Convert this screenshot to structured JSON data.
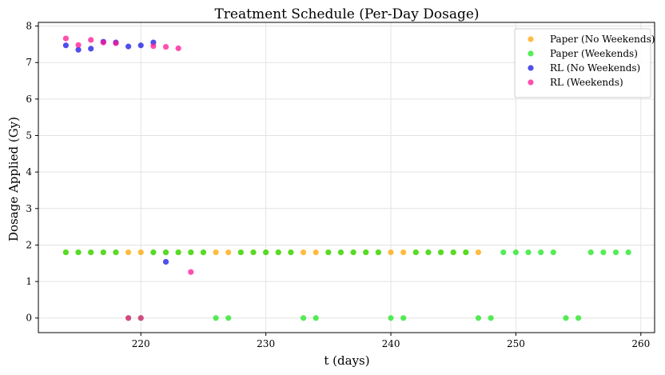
{
  "chart_data": {
    "type": "scatter",
    "title": "Treatment Schedule (Per-Day Dosage)",
    "xlabel": "t (days)",
    "ylabel": "Dosage Applied (Gy)",
    "xlim": [
      211.8,
      261.1
    ],
    "ylim": [
      -0.4,
      8.1
    ],
    "xticks": [
      220,
      230,
      240,
      250,
      260
    ],
    "yticks": [
      0,
      1,
      2,
      3,
      4,
      5,
      6,
      7,
      8
    ],
    "grid": true,
    "legend_position": "top-right",
    "series": [
      {
        "name": "Paper (No Weekends)",
        "color": "#ffa500",
        "x": [
          214,
          215,
          216,
          217,
          218,
          219,
          220,
          221,
          222,
          223,
          224,
          225,
          226,
          227,
          228,
          229,
          230,
          231,
          232,
          233,
          234,
          235,
          236,
          237,
          238,
          239,
          240,
          241,
          242,
          243,
          244,
          245,
          246,
          247
        ],
        "y": [
          1.8,
          1.8,
          1.8,
          1.8,
          1.8,
          1.8,
          1.8,
          1.8,
          1.8,
          1.8,
          1.8,
          1.8,
          1.8,
          1.8,
          1.8,
          1.8,
          1.8,
          1.8,
          1.8,
          1.8,
          1.8,
          1.8,
          1.8,
          1.8,
          1.8,
          1.8,
          1.8,
          1.8,
          1.8,
          1.8,
          1.8,
          1.8,
          1.8,
          1.8
        ]
      },
      {
        "name": "Paper (Weekends)",
        "color": "#1ee61e",
        "x": [
          214,
          215,
          216,
          217,
          218,
          219,
          220,
          221,
          222,
          223,
          224,
          225,
          226,
          227,
          228,
          229,
          230,
          231,
          232,
          233,
          234,
          235,
          236,
          237,
          238,
          239,
          240,
          241,
          242,
          243,
          244,
          245,
          246,
          247,
          248,
          249,
          250,
          251,
          252,
          253,
          254,
          255,
          256,
          257,
          258,
          259
        ],
        "y": [
          1.8,
          1.8,
          1.8,
          1.8,
          1.8,
          0,
          0,
          1.8,
          1.8,
          1.8,
          1.8,
          1.8,
          0,
          0,
          1.8,
          1.8,
          1.8,
          1.8,
          1.8,
          0,
          0,
          1.8,
          1.8,
          1.8,
          1.8,
          1.8,
          0,
          0,
          1.8,
          1.8,
          1.8,
          1.8,
          1.8,
          0,
          0,
          1.8,
          1.8,
          1.8,
          1.8,
          1.8,
          0,
          0,
          1.8,
          1.8,
          1.8,
          1.8
        ]
      },
      {
        "name": "RL (No Weekends)",
        "color": "#1414e6",
        "x": [
          214,
          215,
          216,
          217,
          218,
          219,
          220,
          221,
          222
        ],
        "y": [
          7.47,
          7.35,
          7.38,
          7.57,
          7.55,
          7.44,
          7.47,
          7.55,
          1.54
        ]
      },
      {
        "name": "RL (Weekends)",
        "color": "#ff1493",
        "x": [
          214,
          215,
          216,
          217,
          218,
          219,
          220,
          221,
          222,
          223,
          224
        ],
        "y": [
          7.66,
          7.48,
          7.62,
          7.55,
          7.53,
          0,
          0,
          7.45,
          7.43,
          7.39,
          1.26
        ]
      }
    ]
  }
}
